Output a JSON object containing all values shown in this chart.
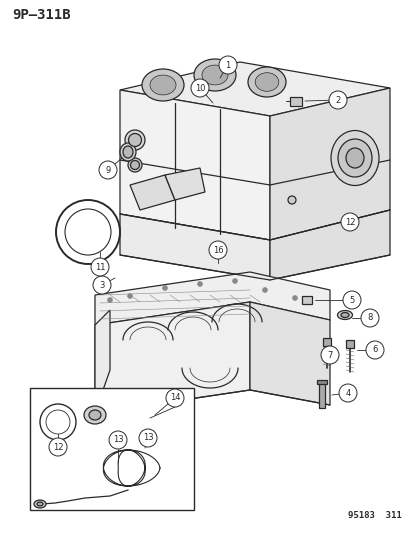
{
  "title": "9P–311B",
  "footer": "95183  311",
  "bg_color": "#ffffff",
  "fig_width": 4.14,
  "fig_height": 5.33,
  "dpi": 100,
  "title_fontsize": 10,
  "footer_fontsize": 6.5,
  "line_color": "#2a2a2a",
  "light_fill": "#f0f0f0",
  "mid_fill": "#d8d8d8",
  "dark_fill": "#b8b8b8"
}
